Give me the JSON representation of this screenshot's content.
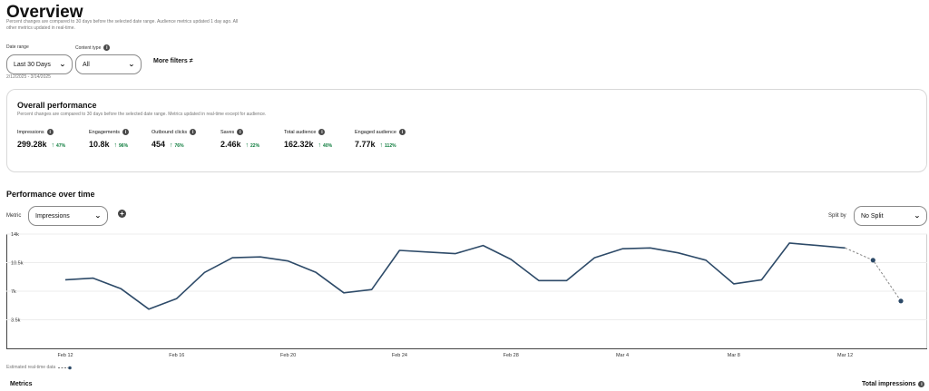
{
  "header": {
    "title": "Overview",
    "subtitle": "Percent changes are compared to 30 days before the selected date range. Audience metrics updated 1 day ago. All other metrics updated in real-time."
  },
  "filters": {
    "date_range_label": "Date range",
    "date_range_value": "Last 30 Days",
    "content_type_label": "Content type",
    "content_type_value": "All",
    "more_filters_label": "More filters",
    "date_range_text": "2/12/2025 - 3/14/2025"
  },
  "overall": {
    "title": "Overall performance",
    "subtitle": "Percent changes are compared to 30 days before the selected date range. Metrics updated in real-time except for audience.",
    "metrics": [
      {
        "label": "Impressions",
        "value": "299.28k",
        "change": "47%"
      },
      {
        "label": "Engagements",
        "value": "10.8k",
        "change": "96%"
      },
      {
        "label": "Outbound clicks",
        "value": "454",
        "change": "76%"
      },
      {
        "label": "Saves",
        "value": "2.46k",
        "change": "22%"
      },
      {
        "label": "Total audience",
        "value": "162.32k",
        "change": "40%"
      },
      {
        "label": "Engaged audience",
        "value": "7.77k",
        "change": "112%"
      }
    ]
  },
  "performance": {
    "title": "Performance over time",
    "metric_label": "Metric",
    "metric_value": "Impressions",
    "split_label": "Split by",
    "split_value": "No Split",
    "legend_label": "Estimated real-time data"
  },
  "footer": {
    "metrics_label": "Metrics",
    "total_impressions_label": "Total impressions"
  },
  "colors": {
    "line": "#2d4a68",
    "positive": "#0a7a3a",
    "text_muted": "#767676"
  },
  "chart_data": {
    "type": "line",
    "ylim": [
      0,
      14000
    ],
    "y_ticks": [
      "14k",
      "10.5k",
      "7k",
      "3.5k"
    ],
    "y_tick_values": [
      14000,
      10500,
      7000,
      3500
    ],
    "x_tick_labels": [
      "Feb 12",
      "Feb 16",
      "Feb 20",
      "Feb 24",
      "Feb 28",
      "Mar 4",
      "Mar 8",
      "Mar 12"
    ],
    "x_tick_dates": [
      "2025-02-12",
      "2025-02-16",
      "2025-02-20",
      "2025-02-24",
      "2025-02-28",
      "2025-03-04",
      "2025-03-08",
      "2025-03-12"
    ],
    "series": [
      {
        "dates": [
          "2025-02-12",
          "2025-02-13",
          "2025-02-14",
          "2025-02-15",
          "2025-02-16",
          "2025-02-17",
          "2025-02-18",
          "2025-02-19",
          "2025-02-20",
          "2025-02-21",
          "2025-02-22",
          "2025-02-23",
          "2025-02-24",
          "2025-02-25",
          "2025-02-26",
          "2025-02-27",
          "2025-02-28",
          "2025-03-01",
          "2025-03-02",
          "2025-03-03",
          "2025-03-04",
          "2025-03-05",
          "2025-03-06",
          "2025-03-07",
          "2025-03-08",
          "2025-03-09",
          "2025-03-10",
          "2025-03-11",
          "2025-03-12"
        ],
        "values": [
          8400,
          8600,
          7300,
          4800,
          6100,
          9300,
          11100,
          11200,
          10700,
          9300,
          6800,
          7200,
          12000,
          11800,
          11600,
          12600,
          10900,
          8300,
          8300,
          11100,
          12200,
          12300,
          11700,
          10800,
          7900,
          8400,
          12900,
          12600,
          12300
        ]
      },
      {
        "estimated": true,
        "dates": [
          "2025-03-12",
          "2025-03-13",
          "2025-03-14"
        ],
        "values": [
          12300,
          10800,
          5800
        ]
      }
    ]
  }
}
